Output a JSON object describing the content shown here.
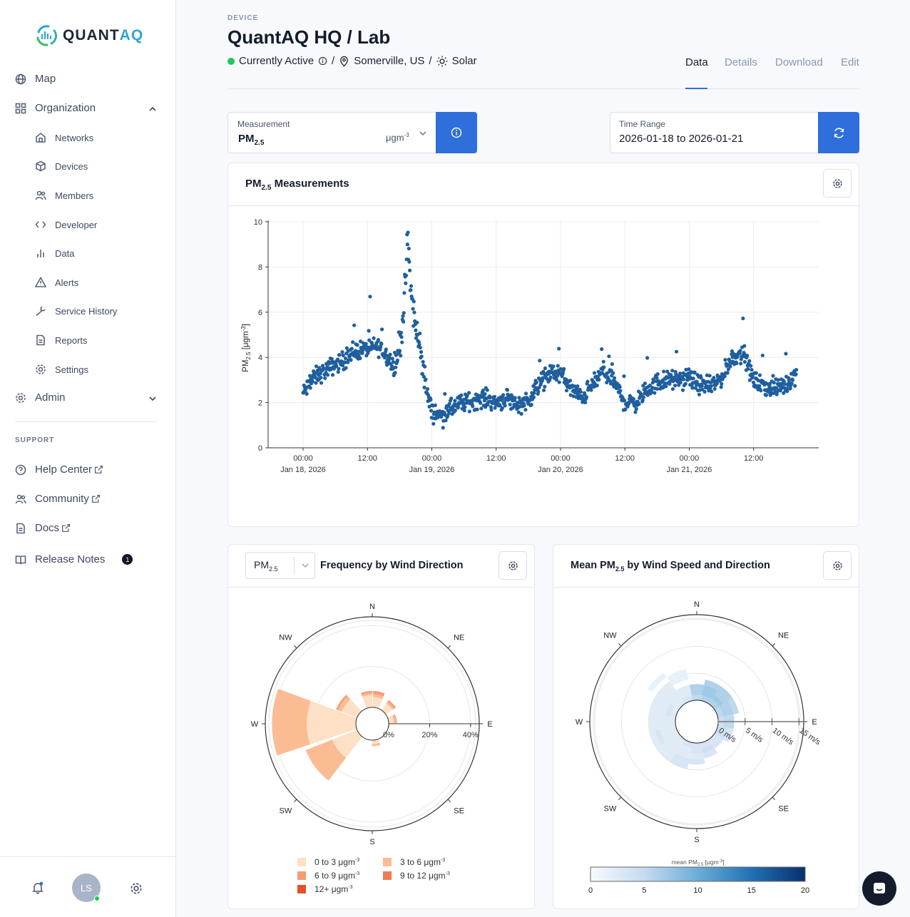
{
  "brand": {
    "name_a": "QUANT",
    "name_b": "AQ"
  },
  "sidebar": {
    "items": [
      {
        "label": "Map",
        "icon": "globe-icon"
      },
      {
        "label": "Organization",
        "icon": "grid-icon"
      },
      {
        "label": "Admin",
        "icon": "gear-icon"
      }
    ],
    "org_items": [
      {
        "label": "Networks",
        "icon": "home-icon"
      },
      {
        "label": "Devices",
        "icon": "cube-icon"
      },
      {
        "label": "Members",
        "icon": "users-icon"
      },
      {
        "label": "Developer",
        "icon": "code-icon"
      },
      {
        "label": "Data",
        "icon": "bar-chart-icon"
      },
      {
        "label": "Alerts",
        "icon": "warning-icon"
      },
      {
        "label": "Service History",
        "icon": "wrench-icon"
      },
      {
        "label": "Reports",
        "icon": "document-icon"
      },
      {
        "label": "Settings",
        "icon": "gear-icon"
      }
    ],
    "support_label": "SUPPORT",
    "support_items": [
      {
        "label": "Help Center",
        "icon": "help-circle-icon"
      },
      {
        "label": "Community",
        "icon": "users-icon"
      },
      {
        "label": "Docs",
        "icon": "document-icon"
      },
      {
        "label": "Release Notes",
        "icon": "book-icon",
        "badge": "1"
      }
    ],
    "user_initials": "LS"
  },
  "header": {
    "eyebrow": "DEVICE",
    "title": "QuantAQ HQ / Lab",
    "status": "Currently Active",
    "location": "Somerville, US",
    "power": "Solar",
    "separator": "/",
    "tabs": [
      {
        "label": "Data",
        "active": true
      },
      {
        "label": "Details"
      },
      {
        "label": "Download"
      },
      {
        "label": "Edit"
      }
    ]
  },
  "controls": {
    "measurement_label": "Measurement",
    "measurement_value": "PM",
    "measurement_sub": "2.5",
    "measurement_unit": "μgm",
    "measurement_unit_exp": "-3",
    "time_range_label": "Time Range",
    "time_range_value": "2026-01-18 to 2026-01-21"
  },
  "colors": {
    "accent": "#2f6fdc",
    "status_active": "#22c55e",
    "series": "#1f5f9e"
  },
  "timeseries_card": {
    "title_a": "PM",
    "title_sub": "2.5",
    "title_b": " Measurements"
  },
  "wind_freq_card": {
    "select_a": "PM",
    "select_sub": "2.5",
    "title": "Frequency by Wind Direction"
  },
  "wind_mean_card": {
    "title_a": "Mean PM",
    "title_sub": "2.5",
    "title_b": " by Wind Speed and Direction"
  },
  "chart_data": [
    {
      "type": "scatter",
      "ylabel": "PM2.5 [μgm-3]",
      "ylim": [
        0,
        11.8
      ],
      "yticks": [
        0,
        2,
        4,
        6,
        8,
        10
      ],
      "x_unit": "hours since Jan 18, 2026 00:00",
      "xticks": [
        {
          "h": 0,
          "time": "00:00",
          "date": "Jan 18, 2026"
        },
        {
          "h": 12,
          "time": "12:00",
          "date": ""
        },
        {
          "h": 24,
          "time": "00:00",
          "date": "Jan 19, 2026"
        },
        {
          "h": 36,
          "time": "12:00",
          "date": ""
        },
        {
          "h": 48,
          "time": "00:00",
          "date": "Jan 20, 2026"
        },
        {
          "h": 60,
          "time": "12:00",
          "date": ""
        },
        {
          "h": 72,
          "time": "00:00",
          "date": "Jan 21, 2026"
        },
        {
          "h": 84,
          "time": "12:00",
          "date": ""
        }
      ],
      "grid": true,
      "trend": [
        [
          0,
          2.4
        ],
        [
          2,
          3.1
        ],
        [
          4,
          3.4
        ],
        [
          6,
          3.7
        ],
        [
          8,
          3.9
        ],
        [
          10,
          4.3
        ],
        [
          12,
          4.4
        ],
        [
          14,
          4.5
        ],
        [
          16,
          4.0
        ],
        [
          17,
          3.6
        ],
        [
          18,
          4.4
        ],
        [
          19,
          6.8
        ],
        [
          19.5,
          9.2
        ],
        [
          20,
          7.2
        ],
        [
          21,
          5.2
        ],
        [
          22,
          4.3
        ],
        [
          23,
          2.5
        ],
        [
          24,
          1.6
        ],
        [
          26,
          1.4
        ],
        [
          28,
          1.8
        ],
        [
          30,
          2.0
        ],
        [
          32,
          2.1
        ],
        [
          34,
          2.2
        ],
        [
          36,
          2.0
        ],
        [
          38,
          2.2
        ],
        [
          40,
          1.9
        ],
        [
          42,
          2.1
        ],
        [
          44,
          2.8
        ],
        [
          46,
          3.3
        ],
        [
          48,
          3.3
        ],
        [
          50,
          2.6
        ],
        [
          52,
          2.2
        ],
        [
          54,
          2.8
        ],
        [
          56,
          3.4
        ],
        [
          58,
          2.9
        ],
        [
          60,
          2.0
        ],
        [
          62,
          2.0
        ],
        [
          64,
          2.5
        ],
        [
          66,
          2.9
        ],
        [
          68,
          3.0
        ],
        [
          70,
          3.0
        ],
        [
          72,
          3.1
        ],
        [
          74,
          2.8
        ],
        [
          76,
          2.7
        ],
        [
          78,
          3.1
        ],
        [
          80,
          4.0
        ],
        [
          82,
          4.2
        ],
        [
          84,
          3.0
        ],
        [
          86,
          2.7
        ],
        [
          88,
          2.6
        ],
        [
          90,
          2.8
        ],
        [
          92,
          3.3
        ]
      ]
    },
    {
      "type": "polar-bar",
      "title": "Frequency by Wind Direction",
      "directions": [
        "N",
        "NE",
        "E",
        "SE",
        "S",
        "SW",
        "W",
        "NW"
      ],
      "radial_ticks": [
        "0%",
        "20%",
        "40%"
      ],
      "radial_values": [
        0,
        20,
        40
      ],
      "legend": [
        {
          "label": "0 to 3 μgm",
          "exp": "-3",
          "color": "#fde0c5"
        },
        {
          "label": "3 to 6 μgm",
          "exp": "-3",
          "color": "#fbbc94"
        },
        {
          "label": "6 to 9 μgm",
          "exp": "-3",
          "color": "#f89b72"
        },
        {
          "label": "9 to 12 μgm",
          "exp": "-3",
          "color": "#f07b50"
        },
        {
          "label": "12+ μgm",
          "exp": "-3",
          "color": "#e4502a"
        }
      ],
      "sectors": [
        {
          "dir": 271,
          "width": 40,
          "pct": [
            24,
            17,
            0,
            0,
            0
          ]
        },
        {
          "dir": 233,
          "width": 32,
          "pct": [
            13,
            14,
            0,
            0,
            0
          ]
        },
        {
          "dir": 305,
          "width": 28,
          "pct": [
            8,
            2,
            1,
            0,
            0
          ]
        },
        {
          "dir": 350,
          "width": 22,
          "pct": [
            6,
            1,
            1,
            0,
            0
          ]
        },
        {
          "dir": 12,
          "width": 22,
          "pct": [
            5,
            1.5,
            1.5,
            0,
            0
          ]
        },
        {
          "dir": 45,
          "width": 22,
          "pct": [
            4,
            1,
            1,
            0,
            0
          ]
        },
        {
          "dir": 78,
          "width": 22,
          "pct": [
            2.5,
            1,
            0.5,
            0,
            0
          ]
        },
        {
          "dir": 170,
          "width": 24,
          "pct": [
            2,
            1,
            0,
            0,
            0
          ]
        }
      ]
    },
    {
      "type": "polar-heatmap",
      "title": "Mean PM2.5 by Wind Speed and Direction",
      "directions": [
        "N",
        "NE",
        "E",
        "SE",
        "S",
        "SW",
        "W",
        "NW"
      ],
      "radial_ticks": [
        "0 m/s",
        "5 m/s",
        "10 m/s",
        "15 m/s"
      ],
      "radial_values": [
        0,
        5,
        10,
        15
      ],
      "colorbar": {
        "title": "mean PM",
        "title_sub": "2.5",
        "title_unit": " [μgm",
        "title_exp": "-3",
        "ticks": [
          "0",
          "5",
          "10",
          "15",
          "20"
        ],
        "range": [
          0,
          20
        ]
      },
      "speed_bin": 1,
      "cells": [
        {
          "dir": 0,
          "values": [
            6,
            7,
            7
          ]
        },
        {
          "dir": 22.5,
          "values": [
            7,
            8,
            8,
            7
          ]
        },
        {
          "dir": 45,
          "values": [
            7,
            8,
            7,
            7
          ]
        },
        {
          "dir": 67.5,
          "values": [
            6,
            7,
            7,
            6
          ]
        },
        {
          "dir": 90,
          "values": [
            5,
            6,
            6
          ]
        },
        {
          "dir": 112.5,
          "values": [
            5,
            5,
            4
          ]
        },
        {
          "dir": 135,
          "values": [
            4,
            4
          ]
        },
        {
          "dir": 157.5,
          "values": [
            4,
            5,
            4
          ]
        },
        {
          "dir": 180,
          "values": [
            4,
            4,
            3,
            4
          ]
        },
        {
          "dir": 202.5,
          "values": [
            4,
            3,
            3,
            4,
            4
          ]
        },
        {
          "dir": 225,
          "values": [
            3,
            3,
            3,
            3,
            3
          ]
        },
        {
          "dir": 247.5,
          "values": [
            3,
            3,
            3,
            4,
            3
          ]
        },
        {
          "dir": 270,
          "values": [
            3,
            3,
            3,
            3,
            3
          ]
        },
        {
          "dir": 292.5,
          "values": [
            3,
            4,
            3,
            3,
            3
          ]
        },
        {
          "dir": 315,
          "values": [
            3,
            3,
            3,
            3,
            3,
            0,
            2
          ]
        },
        {
          "dir": 337.5,
          "values": [
            4,
            3,
            3,
            0,
            2,
            2
          ]
        }
      ]
    }
  ]
}
